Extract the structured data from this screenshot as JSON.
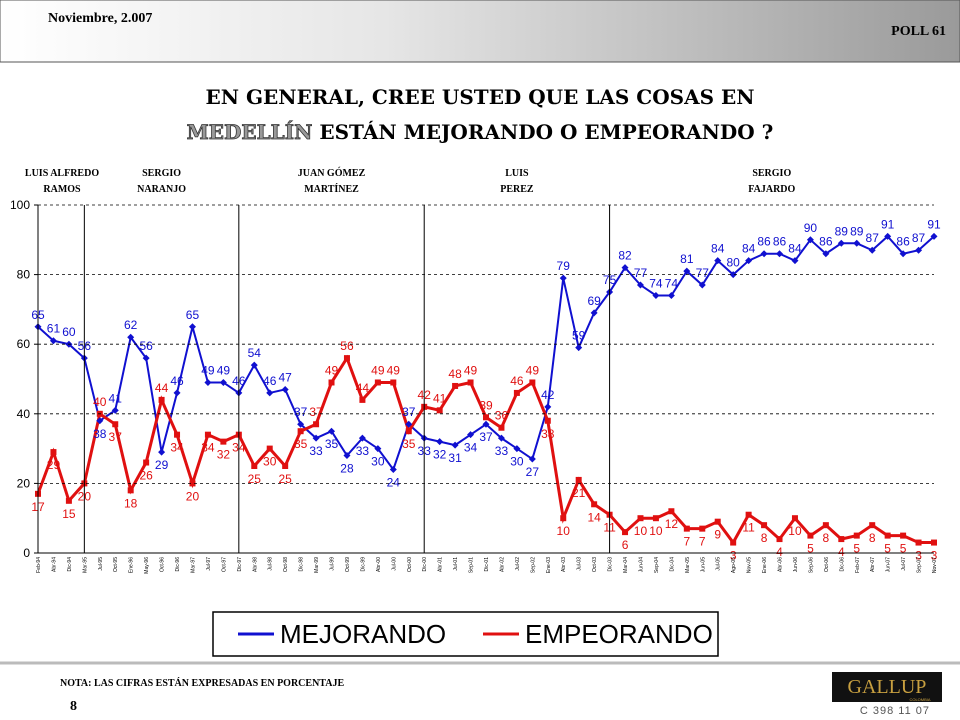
{
  "header": {
    "date": "Noviembre, 2.007",
    "poll": "POLL 61"
  },
  "title": {
    "line1": "EN GENERAL,  CREE  USTED  QUE  LAS  COSAS  EN",
    "highlight": "MEDELLÍN",
    "line2": "ESTÁN MEJORANDO O EMPEORANDO ?"
  },
  "chart_data": {
    "type": "line",
    "categories": [
      "Feb-94",
      "Abr-94",
      "Dic-94",
      "Mar-95",
      "Jul-95",
      "Oct-95",
      "Ene-96",
      "May-96",
      "Oct-96",
      "Dic-96",
      "Mar-97",
      "Jul-97",
      "Oct-97",
      "Dic-97",
      "Abr-98",
      "Jul-98",
      "Oct-98",
      "Dic-98",
      "Mar-99",
      "Jul-99",
      "Oct-99",
      "Dic-99",
      "Abr-00",
      "Jul-00",
      "Oct-00",
      "Dic-00",
      "Abr-01",
      "Jul-01",
      "Sep-01",
      "Dic-01",
      "Abr-02",
      "Jul-02",
      "Sep-02",
      "Ene-03",
      "Abr-03",
      "Jul-03",
      "Oct-03",
      "Dic-03",
      "Mar-04",
      "Jun-04",
      "Sep-04",
      "Dic-04",
      "Mar-05",
      "Jun-05",
      "Jul-05",
      "Ago-05",
      "Nov-05",
      "Ene-06",
      "Abr-06",
      "Jun-06",
      "Sep-06",
      "Oct-06",
      "Dic-06",
      "Feb-07",
      "Abr-07",
      "Jun-07",
      "Jul-07",
      "Sep-07",
      "Nov-07"
    ],
    "series": [
      {
        "name": "MEJORANDO",
        "color": "#1010d0",
        "marker": "diamond",
        "values": [
          65,
          61,
          60,
          56,
          38,
          41,
          62,
          56,
          29,
          46,
          65,
          49,
          49,
          46,
          54,
          46,
          47,
          37,
          33,
          35,
          28,
          33,
          30,
          24,
          37,
          33,
          32,
          31,
          34,
          37,
          33,
          30,
          27,
          42,
          79,
          59,
          69,
          75,
          82,
          77,
          74,
          74,
          81,
          77,
          84,
          80,
          84,
          86,
          86,
          84,
          90,
          86,
          89,
          89,
          87,
          91,
          86,
          87,
          91
        ]
      },
      {
        "name": "EMPEORANDO",
        "color": "#e01010",
        "marker": "square",
        "values": [
          17,
          29,
          15,
          20,
          40,
          37,
          18,
          26,
          44,
          34,
          20,
          34,
          32,
          34,
          25,
          30,
          25,
          35,
          37,
          49,
          56,
          44,
          49,
          49,
          35,
          42,
          41,
          48,
          49,
          39,
          36,
          46,
          49,
          38,
          10,
          21,
          14,
          11,
          6,
          10,
          10,
          12,
          7,
          7,
          9,
          3,
          11,
          8,
          4,
          10,
          5,
          8,
          4,
          5,
          8,
          5,
          5,
          3,
          3
        ]
      }
    ],
    "ylim": [
      0,
      100
    ],
    "yticks": [
      0,
      20,
      40,
      60,
      80,
      100
    ],
    "grid": true,
    "periods": [
      {
        "lines": [
          "LUIS ALFREDO",
          "RAMOS"
        ],
        "from": "Feb-94"
      },
      {
        "lines": [
          "SERGIO",
          "NARANJO"
        ],
        "from": "Mar-95"
      },
      {
        "lines": [
          "JUAN GÓMEZ",
          "MARTÍNEZ"
        ],
        "from": "Dic-97"
      },
      {
        "lines": [
          "LUIS",
          "PEREZ"
        ],
        "from": "Dic-00"
      },
      {
        "lines": [
          "SERGIO",
          "FAJARDO"
        ],
        "from": "Dic-03"
      }
    ]
  },
  "footer": {
    "note": "NOTA: LAS CIFRAS ESTÁN EXPRESADAS EN PORCENTAJE",
    "page": "8",
    "logo": "GALLUP",
    "logo_sub": "COLOMBIA",
    "code": "C 398 11 07"
  }
}
